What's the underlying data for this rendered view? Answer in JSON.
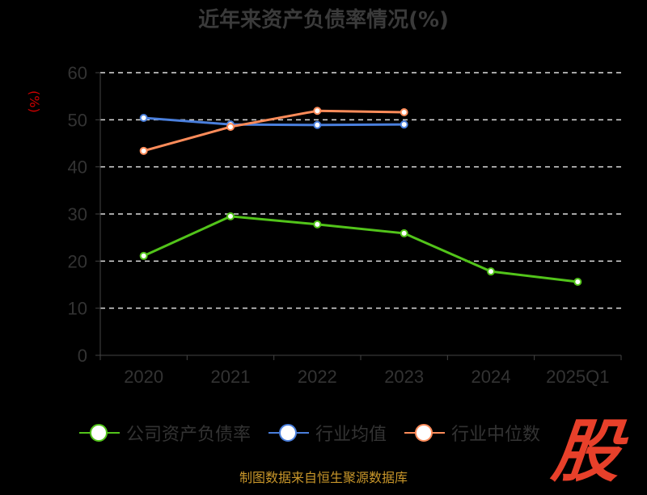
{
  "chart_data": {
    "type": "line",
    "title": "近年来资产负债率情况(%)",
    "ylabel": "(%)",
    "xlabel": "",
    "ylim": [
      0,
      60
    ],
    "yticks": [
      0,
      10,
      20,
      30,
      40,
      50,
      60
    ],
    "grid": true,
    "categories": [
      "2020",
      "2021",
      "2022",
      "2023",
      "2024",
      "2025Q1"
    ],
    "legend_position": "bottom",
    "series": [
      {
        "name": "公司资产负债率",
        "color": "#52c41a",
        "values": [
          21.1,
          29.5,
          27.8,
          25.9,
          17.8,
          15.6
        ]
      },
      {
        "name": "行业均值",
        "color": "#4a7fdc",
        "values": [
          50.4,
          49.0,
          48.9,
          49.0,
          null,
          null
        ]
      },
      {
        "name": "行业中位数",
        "color": "#ff8c5a",
        "values": [
          43.4,
          48.5,
          51.9,
          51.6,
          null,
          null
        ]
      }
    ]
  },
  "source": "制图数据来自恒生聚源数据库",
  "logo_text": "股"
}
